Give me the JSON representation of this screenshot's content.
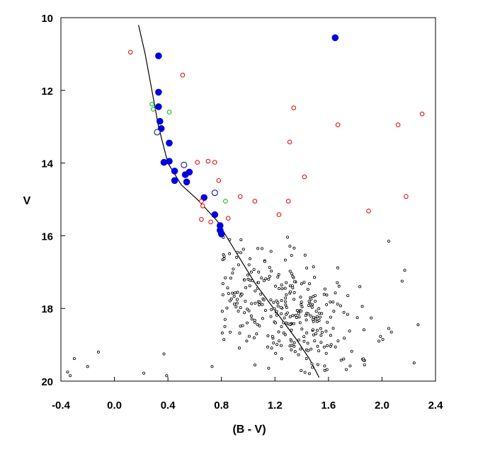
{
  "chart_data": {
    "type": "scatter",
    "xlabel": "(B - V)",
    "ylabel": "V",
    "xlim": [
      -0.4,
      2.4
    ],
    "ylim": [
      10,
      20
    ],
    "y_inverted": true,
    "grid": false,
    "legend": "none",
    "x_ticks": [
      "-0.4",
      "0.0",
      "0.4",
      "0.8",
      "1.2",
      "1.6",
      "2.0",
      "2.4"
    ],
    "x_tick_values": [
      -0.4,
      0.0,
      0.4,
      0.8,
      1.2,
      1.6,
      2.0,
      2.4
    ],
    "y_ticks": [
      "10",
      "12",
      "14",
      "16",
      "18",
      "20"
    ],
    "y_tick_values": [
      10,
      12,
      14,
      16,
      18,
      20
    ],
    "series": [
      {
        "marker": "filled-circle",
        "color": "#0000dd",
        "points": [
          [
            0.33,
            11.05
          ],
          [
            1.65,
            10.55
          ],
          [
            0.33,
            12.05
          ],
          [
            0.33,
            12.45
          ],
          [
            0.34,
            12.85
          ],
          [
            0.35,
            13.05
          ],
          [
            0.41,
            13.45
          ],
          [
            0.37,
            13.98
          ],
          [
            0.41,
            13.95
          ],
          [
            0.45,
            14.22
          ],
          [
            0.53,
            14.32
          ],
          [
            0.56,
            14.25
          ],
          [
            0.45,
            14.48
          ],
          [
            0.54,
            14.52
          ],
          [
            0.67,
            14.95
          ],
          [
            0.75,
            15.42
          ],
          [
            0.79,
            15.72
          ],
          [
            0.79,
            15.85
          ],
          [
            0.8,
            15.95
          ]
        ]
      },
      {
        "marker": "open-circle",
        "color": "#000080",
        "points": [
          [
            0.32,
            13.15
          ],
          [
            0.52,
            14.05
          ],
          [
            0.75,
            14.82
          ]
        ]
      },
      {
        "marker": "open-circle-small",
        "color": "#dd0000",
        "points": [
          [
            0.12,
            10.95
          ],
          [
            0.51,
            11.58
          ],
          [
            1.34,
            12.48
          ],
          [
            1.67,
            12.95
          ],
          [
            2.12,
            12.95
          ],
          [
            2.3,
            12.65
          ],
          [
            1.31,
            13.42
          ],
          [
            0.62,
            13.98
          ],
          [
            0.7,
            13.95
          ],
          [
            0.75,
            13.98
          ],
          [
            0.78,
            14.48
          ],
          [
            1.42,
            14.38
          ],
          [
            0.65,
            15.05
          ],
          [
            0.66,
            15.18
          ],
          [
            0.94,
            14.92
          ],
          [
            1.05,
            15.05
          ],
          [
            1.3,
            15.05
          ],
          [
            2.18,
            14.92
          ],
          [
            0.65,
            15.55
          ],
          [
            0.72,
            15.62
          ],
          [
            0.85,
            15.52
          ],
          [
            1.23,
            15.42
          ],
          [
            1.9,
            15.32
          ]
        ]
      },
      {
        "marker": "open-circle-small",
        "color": "#00bb00",
        "points": [
          [
            0.28,
            12.38
          ],
          [
            0.29,
            12.52
          ],
          [
            0.41,
            12.6
          ],
          [
            0.83,
            15.05
          ]
        ]
      }
    ],
    "field_stars": {
      "marker": "tiny-open-circle",
      "color": "#000000",
      "count": 320,
      "center_bv": 1.25,
      "center_v": 18.0,
      "spread_bv": 0.27,
      "spread_v": 0.95,
      "v_min": 16.0,
      "v_max": 19.9,
      "bv_min": 0.8,
      "bv_max": 2.2,
      "outliers": [
        [
          -0.35,
          19.75
        ],
        [
          -0.33,
          19.85
        ],
        [
          -0.3,
          19.38
        ],
        [
          -0.2,
          19.6
        ],
        [
          -0.12,
          19.2
        ],
        [
          0.22,
          19.78
        ],
        [
          0.37,
          19.25
        ],
        [
          0.39,
          19.85
        ],
        [
          0.73,
          19.6
        ],
        [
          2.05,
          16.15
        ],
        [
          2.15,
          17.25
        ],
        [
          2.17,
          16.95
        ],
        [
          2.27,
          18.45
        ],
        [
          2.24,
          19.5
        ],
        [
          2.05,
          18.55
        ],
        [
          2.07,
          18.65
        ]
      ]
    },
    "fit_line": {
      "color": "#000000",
      "points": [
        [
          0.18,
          10.2
        ],
        [
          0.23,
          11.0
        ],
        [
          0.28,
          12.0
        ],
        [
          0.33,
          13.0
        ],
        [
          0.4,
          14.0
        ],
        [
          0.5,
          14.6
        ],
        [
          0.62,
          15.0
        ],
        [
          0.77,
          15.6
        ],
        [
          0.85,
          16.1
        ],
        [
          0.95,
          16.7
        ],
        [
          1.05,
          17.3
        ],
        [
          1.15,
          17.8
        ],
        [
          1.25,
          18.3
        ],
        [
          1.36,
          18.85
        ],
        [
          1.46,
          19.4
        ],
        [
          1.53,
          19.9
        ]
      ]
    }
  }
}
